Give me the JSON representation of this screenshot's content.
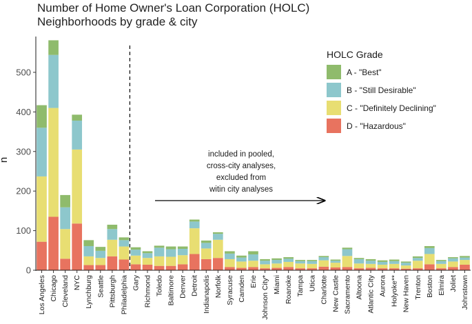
{
  "chart_data": {
    "type": "bar",
    "stacked": true,
    "title_lines": [
      "Number of Home Owner's Loan Corporation (HOLC)",
      "Neighborhoods by grade & city"
    ],
    "xlabel": "",
    "ylabel": "n",
    "ylim": [
      0,
      580
    ],
    "yticks": [
      0,
      100,
      200,
      300,
      400,
      500
    ],
    "grid": false,
    "categories": [
      "Los Angeles",
      "Chicago",
      "Cleveland",
      "NYC",
      "Lynchburg",
      "Seattle",
      "Pittsburgh",
      "Philadelphia",
      "Gary",
      "Richmond",
      "Toledo",
      "Baltimore",
      "Denver",
      "Detroit",
      "Indianapolis",
      "Norfolk",
      "Syracuse",
      "Camden",
      "Erie",
      "Johnson City*",
      "Miami",
      "Roanoke",
      "Tampa",
      "Utica",
      "Charlotte",
      "New Castle",
      "Sacramento",
      "Altoona",
      "Atlantic City",
      "Aurora",
      "Holyoke**",
      "New Haven",
      "Trenton",
      "Boston",
      "Elmira",
      "Joliet",
      "Johnstown"
    ],
    "series": [
      {
        "name": "D - \"Hazardous\"",
        "color": "#E8735F",
        "values": [
          72,
          135,
          29,
          118,
          13,
          13,
          35,
          27,
          15,
          14,
          11,
          11,
          15,
          41,
          28,
          31,
          8,
          6,
          8,
          5,
          6,
          8,
          5,
          5,
          9,
          7,
          8,
          5,
          6,
          5,
          5,
          4,
          5,
          15,
          5,
          8,
          14
        ]
      },
      {
        "name": "C - \"Definitely Declining\"",
        "color": "#E8DE72",
        "values": [
          165,
          275,
          75,
          187,
          22,
          18,
          42,
          33,
          22,
          17,
          24,
          23,
          23,
          65,
          27,
          46,
          20,
          16,
          16,
          10,
          11,
          13,
          12,
          11,
          16,
          12,
          28,
          12,
          10,
          9,
          11,
          8,
          19,
          26,
          11,
          14,
          12
        ]
      },
      {
        "name": "B - \"Still Desirable\"",
        "color": "#8DC7CC",
        "values": [
          123,
          134,
          55,
          73,
          26,
          18,
          27,
          16,
          15,
          12,
          22,
          19,
          16,
          17,
          14,
          15,
          14,
          10,
          16,
          9,
          9,
          8,
          6,
          7,
          8,
          5,
          17,
          11,
          8,
          7,
          7,
          7,
          7,
          15,
          7,
          8,
          6
        ]
      },
      {
        "name": "A - \"Best\"",
        "color": "#8FBB6C",
        "values": [
          57,
          37,
          31,
          15,
          15,
          10,
          11,
          7,
          6,
          5,
          5,
          7,
          6,
          5,
          6,
          4,
          6,
          5,
          8,
          4,
          4,
          4,
          3,
          3,
          3,
          3,
          4,
          3,
          4,
          4,
          4,
          3,
          4,
          5,
          3,
          3,
          4
        ]
      }
    ],
    "legend": {
      "title": "HOLC Grade",
      "position": "top-right",
      "items": [
        {
          "label": "A - \"Best\"",
          "color": "#8FBB6C"
        },
        {
          "label": "B - \"Still Desirable\"",
          "color": "#8DC7CC"
        },
        {
          "label": "C - \"Definitely Declining\"",
          "color": "#E8DE72"
        },
        {
          "label": "D - \"Hazardous\"",
          "color": "#E8735F"
        }
      ]
    },
    "divider_after": "Philadelphia",
    "annotation": {
      "lines": [
        "included in pooled,",
        "cross-city analyses,",
        "excluded from",
        "witin city analyses"
      ]
    }
  }
}
